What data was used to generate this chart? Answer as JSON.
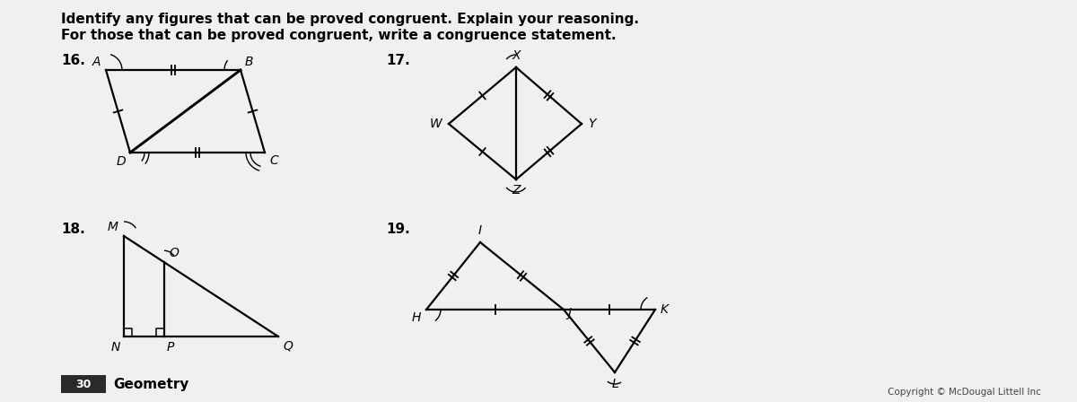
{
  "bg_color": "#f0f0f0",
  "title_line1": "Identify any figures that can be proved congruent. Explain your reasoning.",
  "title_line2": "For those that can be proved congruent, write a congruence statement.",
  "fig16_label": "16.",
  "fig17_label": "17.",
  "fig18_label": "18.",
  "fig19_label": "19.",
  "page_num": "30",
  "page_text": "Geometry",
  "copyright": "Copyright © McDougal Littell Inc",
  "text_color": "#000000",
  "line_color": "#000000",
  "line_width": 1.6
}
